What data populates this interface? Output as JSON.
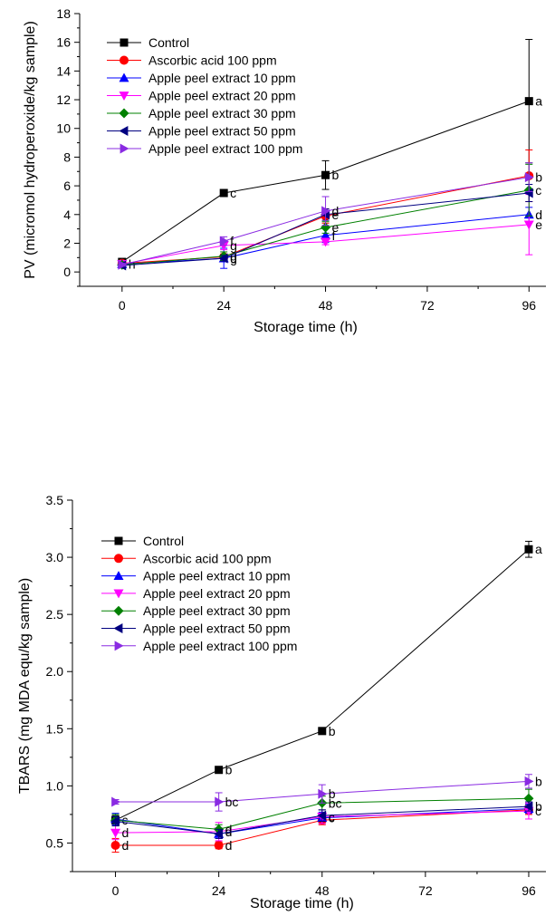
{
  "chart_data": [
    {
      "type": "line",
      "title": "",
      "xlabel": "Storage time (h)",
      "ylabel": "PV (micromol hydroperoxide/kg sample)",
      "x": [
        0,
        24,
        48,
        96
      ],
      "xticks": [
        "0",
        "24",
        "48",
        "72",
        "96"
      ],
      "xlim": [
        -10,
        100
      ],
      "ylim": [
        -1,
        18
      ],
      "yticks": [
        "0",
        "2",
        "4",
        "6",
        "8",
        "10",
        "12",
        "14",
        "16",
        "18"
      ],
      "legend_position": "top-left",
      "series": [
        {
          "name": "Control",
          "color": "#000000",
          "marker": "square",
          "values": [
            0.7,
            5.5,
            6.75,
            11.9
          ],
          "errors": [
            0.15,
            0,
            1.0,
            4.3
          ],
          "labels": [
            "",
            "c",
            "b",
            "a"
          ]
        },
        {
          "name": "Ascorbic acid 100 ppm",
          "color": "#ff0000",
          "marker": "circle",
          "values": [
            0.6,
            1.05,
            3.9,
            6.7
          ],
          "errors": [
            0.1,
            0.2,
            0.5,
            1.8
          ],
          "labels": [
            "",
            "",
            "",
            ""
          ]
        },
        {
          "name": "Apple peel extract 10 ppm",
          "color": "#0000ff",
          "marker": "triangle-up",
          "values": [
            0.55,
            0.95,
            2.55,
            4.0
          ],
          "errors": [
            0.1,
            0.7,
            0.5,
            0.5
          ],
          "labels": [
            "h",
            "g",
            "f",
            "d"
          ]
        },
        {
          "name": "Apple peel extract 20 ppm",
          "color": "#ff00ff",
          "marker": "triangle-down",
          "values": [
            0.55,
            1.85,
            2.1,
            3.3
          ],
          "errors": [
            0.1,
            0.3,
            0.2,
            2.1
          ],
          "labels": [
            "",
            "g",
            "",
            "e"
          ]
        },
        {
          "name": "Apple peel extract 30 ppm",
          "color": "#008000",
          "marker": "diamond",
          "values": [
            0.5,
            1.1,
            3.1,
            5.7
          ],
          "errors": [
            0.1,
            0.3,
            0.4,
            1.8
          ],
          "labels": [
            "",
            "g",
            "e",
            "c"
          ]
        },
        {
          "name": "Apple peel extract 50 ppm",
          "color": "#000080",
          "marker": "triangle-left",
          "values": [
            0.45,
            0.95,
            4.0,
            5.5
          ],
          "errors": [
            0.1,
            0.2,
            0.4,
            0.6
          ],
          "labels": [
            "",
            "",
            "e",
            ""
          ]
        },
        {
          "name": "Apple peel extract 100 ppm",
          "color": "#8a2be2",
          "marker": "triangle-right",
          "values": [
            0.5,
            2.15,
            4.25,
            6.6
          ],
          "errors": [
            0.1,
            0.3,
            1.0,
            1.0
          ],
          "labels": [
            "",
            "f",
            "d",
            "b"
          ]
        }
      ]
    },
    {
      "type": "line",
      "title": "",
      "xlabel": "Storage time (h)",
      "ylabel": "TBARS (mg MDA equ/kg sample)",
      "x": [
        0,
        24,
        48,
        96
      ],
      "xticks": [
        "0",
        "24",
        "48",
        "72",
        "96"
      ],
      "xlim": [
        -10,
        100
      ],
      "ylim": [
        0.25,
        3.5
      ],
      "yticks": [
        "0.5",
        "1.0",
        "1.5",
        "2.0",
        "2.5",
        "3.0",
        "3.5"
      ],
      "legend_position": "top-left",
      "series": [
        {
          "name": "Control",
          "color": "#000000",
          "marker": "square",
          "values": [
            0.7,
            1.14,
            1.48,
            3.07
          ],
          "errors": [
            0.04,
            0,
            0,
            0.07
          ],
          "labels": [
            "c",
            "b",
            "b",
            "a"
          ]
        },
        {
          "name": "Ascorbic acid 100 ppm",
          "color": "#ff0000",
          "marker": "circle",
          "values": [
            0.48,
            0.48,
            0.7,
            0.79
          ],
          "errors": [
            0.06,
            0.03,
            0.04,
            0.04
          ],
          "labels": [
            "d",
            "d",
            "",
            ""
          ]
        },
        {
          "name": "Apple peel extract 10 ppm",
          "color": "#0000ff",
          "marker": "triangle-up",
          "values": [
            0.71,
            0.58,
            0.72,
            0.8
          ],
          "errors": [
            0.05,
            0.04,
            0.05,
            0.04
          ],
          "labels": [
            "",
            "",
            "c",
            ""
          ]
        },
        {
          "name": "Apple peel extract 20 ppm",
          "color": "#ff00ff",
          "marker": "triangle-down",
          "values": [
            0.59,
            0.6,
            0.73,
            0.78
          ],
          "errors": [
            0.06,
            0.08,
            0.06,
            0.07
          ],
          "labels": [
            "d",
            "d",
            "c",
            "c"
          ]
        },
        {
          "name": "Apple peel extract 30 ppm",
          "color": "#008000",
          "marker": "diamond",
          "values": [
            0.7,
            0.62,
            0.85,
            0.89
          ],
          "errors": [
            0.05,
            0.04,
            0.06,
            0.08
          ],
          "labels": [
            "",
            "d",
            "bc",
            ""
          ]
        },
        {
          "name": "Apple peel extract 50 ppm",
          "color": "#000080",
          "marker": "triangle-left",
          "values": [
            0.69,
            0.58,
            0.74,
            0.82
          ],
          "errors": [
            0.04,
            0.04,
            0.05,
            0.04
          ],
          "labels": [
            "",
            "",
            "",
            "b"
          ]
        },
        {
          "name": "Apple peel extract 100 ppm",
          "color": "#8a2be2",
          "marker": "triangle-right",
          "values": [
            0.86,
            0.86,
            0.93,
            1.04
          ],
          "errors": [
            0.02,
            0.08,
            0.08,
            0.06
          ],
          "labels": [
            "",
            "bc",
            "b",
            "b"
          ]
        }
      ]
    }
  ]
}
